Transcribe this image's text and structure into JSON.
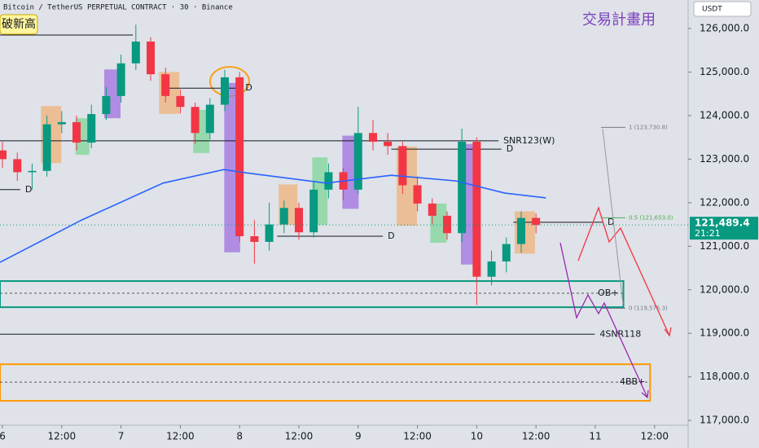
{
  "chart_data": {
    "type": "candlestick",
    "title": "Bitcoin / TetherUS PERPETUAL CONTRACT · 30 · Binance",
    "annotation": "交易計畫用",
    "callout": "破新高",
    "currency": "USDT",
    "last_price": {
      "value": 121489.4,
      "label": "121,489.4"
    },
    "countdown": "21:21",
    "up_color": "#089981",
    "down_color": "#f23645",
    "xlim": [
      -0.5,
      138.8
    ],
    "ylim": [
      116890,
      126655
    ],
    "xticks": [
      {
        "value": 0,
        "label": "6"
      },
      {
        "value": 12,
        "label": "12:00"
      },
      {
        "value": 24,
        "label": "7"
      },
      {
        "value": 36,
        "label": "12:00"
      },
      {
        "value": 48,
        "label": "8"
      },
      {
        "value": 60,
        "label": "12:00"
      },
      {
        "value": 72,
        "label": "9"
      },
      {
        "value": 84,
        "label": "12:00"
      },
      {
        "value": 96,
        "label": "10"
      },
      {
        "value": 108,
        "label": "12:00"
      },
      {
        "value": 120,
        "label": "11"
      },
      {
        "value": 132,
        "label": "12:00"
      }
    ],
    "yticks": [
      {
        "value": 117000,
        "label": "117,000.0"
      },
      {
        "value": 118000,
        "label": "118,000.0"
      },
      {
        "value": 119000,
        "label": "119,000.0"
      },
      {
        "value": 120000,
        "label": "120,000.0"
      },
      {
        "value": 121000,
        "label": "121,000.0"
      },
      {
        "value": 122000,
        "label": "122,000.0"
      },
      {
        "value": 123000,
        "label": "123,000.0"
      },
      {
        "value": 124000,
        "label": "124,000.0"
      },
      {
        "value": 125000,
        "label": "125,000.0"
      },
      {
        "value": 126000,
        "label": "126,000.0"
      }
    ],
    "x": [
      0,
      3,
      6,
      9,
      12,
      15,
      18,
      21,
      24,
      27,
      30,
      33,
      36,
      39,
      42,
      45,
      48,
      51,
      54,
      57,
      60,
      63,
      66,
      69,
      72,
      75,
      78,
      81,
      84,
      87,
      90,
      93,
      96,
      99,
      102,
      105,
      108
    ],
    "open": [
      123200,
      123000,
      122700,
      122730,
      123800,
      123850,
      123380,
      124035,
      124450,
      125200,
      125700,
      124950,
      124450,
      124200,
      123600,
      124250,
      124880,
      121230,
      121100,
      121500,
      121880,
      121320,
      122300,
      122700,
      122300,
      123600,
      123400,
      123300,
      122400,
      121980,
      121700,
      121300,
      123400,
      120300,
      120650,
      121050,
      121650
    ],
    "high": [
      123400,
      123150,
      122900,
      124000,
      124100,
      124000,
      124250,
      124650,
      125400,
      126090,
      125800,
      125100,
      124600,
      124300,
      124400,
      125050,
      125000,
      121600,
      122000,
      122050,
      122000,
      122500,
      122900,
      122800,
      124200,
      123900,
      123600,
      123400,
      122600,
      122100,
      121800,
      123700,
      123500,
      120900,
      121200,
      121800,
      121750
    ],
    "low": [
      122800,
      122500,
      122300,
      122600,
      123600,
      123200,
      123250,
      123900,
      124300,
      125050,
      124800,
      124300,
      124050,
      123350,
      123450,
      124100,
      121100,
      120600,
      120900,
      121300,
      121150,
      121200,
      122100,
      122050,
      122200,
      123200,
      123100,
      122200,
      121800,
      121500,
      121150,
      121100,
      119650,
      120100,
      120400,
      120850,
      121300
    ],
    "close": [
      123000,
      122700,
      122730,
      123800,
      123850,
      123380,
      124035,
      124450,
      125200,
      125700,
      124950,
      124450,
      124200,
      123600,
      124250,
      124880,
      121230,
      121100,
      121500,
      121880,
      121320,
      122300,
      122700,
      122300,
      123600,
      123400,
      123300,
      122400,
      121980,
      121700,
      121300,
      123400,
      120300,
      120650,
      121050,
      121650,
      121489.4
    ],
    "series": [
      {
        "color": "#2962ff",
        "x": [
          -0.5,
          16,
          32.5,
          44.8,
          49,
          65.5,
          78.7,
          91.8,
          101.7,
          110
        ],
        "values": [
          120630,
          121600,
          122450,
          122760,
          122690,
          122450,
          122630,
          122500,
          122220,
          122110
        ]
      }
    ],
    "highlights": [
      {
        "from": 7.8,
        "to": 11.9,
        "top": 124220,
        "bottom": 122910,
        "color": "#f0b27a"
      },
      {
        "from": 14.8,
        "to": 17.6,
        "top": 123940,
        "bottom": 123100,
        "color": "#7fd69a"
      },
      {
        "from": 20.6,
        "to": 23.9,
        "top": 125060,
        "bottom": 123940,
        "color": "#a070e0"
      },
      {
        "from": 31.7,
        "to": 35.8,
        "top": 125000,
        "bottom": 124040,
        "color": "#f0b27a"
      },
      {
        "from": 38.6,
        "to": 41.9,
        "top": 124130,
        "bottom": 123140,
        "color": "#7fd69a"
      },
      {
        "from": 44.9,
        "to": 48.1,
        "top": 124750,
        "bottom": 120860,
        "color": "#a070e0"
      },
      {
        "from": 55.9,
        "to": 59.7,
        "top": 122420,
        "bottom": 121490,
        "color": "#f0b27a"
      },
      {
        "from": 62.7,
        "to": 65.8,
        "top": 123040,
        "bottom": 121490,
        "color": "#7fd69a"
      },
      {
        "from": 68.8,
        "to": 72.1,
        "top": 123540,
        "bottom": 121860,
        "color": "#a070e0"
      },
      {
        "from": 79.8,
        "to": 83.9,
        "top": 123290,
        "bottom": 121470,
        "color": "#f0b27a"
      },
      {
        "from": 86.6,
        "to": 89.9,
        "top": 121980,
        "bottom": 121080,
        "color": "#7fd69a"
      },
      {
        "from": 92.8,
        "to": 96,
        "top": 123350,
        "bottom": 120580,
        "color": "#a070e0"
      },
      {
        "from": 103.7,
        "to": 107.8,
        "top": 121800,
        "bottom": 120830,
        "color": "#f0b27a"
      }
    ],
    "levels": [
      {
        "price": 125850,
        "from": -0.5,
        "to": 26.4
      },
      {
        "price": 124630,
        "from": 32.5,
        "to": 48.2,
        "label": "D"
      },
      {
        "price": 123420,
        "from": -0.5,
        "to": 100.4,
        "label": "SNR123(W)"
      },
      {
        "price": 123230,
        "from": 78.7,
        "to": 101,
        "label": "D"
      },
      {
        "price": 122300,
        "from": -0.5,
        "to": 3.6,
        "label": "D"
      },
      {
        "price": 121230,
        "from": 55.6,
        "to": 77,
        "label": "D"
      },
      {
        "price": 121550,
        "from": 103.4,
        "to": 121.5,
        "label": "D"
      },
      {
        "price": 118980,
        "from": -0.5,
        "to": 119.9,
        "label": "4SNR118"
      }
    ],
    "zones": [
      {
        "label": "OB+",
        "top": 120200,
        "bottom": 119600,
        "mid": 119920,
        "to": 125.7,
        "color": "#089981"
      },
      {
        "label": "4BB+",
        "top": 118290,
        "bottom": 117450,
        "mid": 117880,
        "to": 131.1,
        "color": "#ff9800"
      }
    ],
    "fib": [
      {
        "value": 123730.8,
        "label": "1 (123,730.8)",
        "color": "#787b86"
      },
      {
        "value": 121653,
        "label": "0.5 (121,653.0)",
        "color": "#4caf50"
      },
      {
        "value": 119575.3,
        "label": "0 (119,575.3)",
        "color": "#787b86"
      }
    ]
  }
}
